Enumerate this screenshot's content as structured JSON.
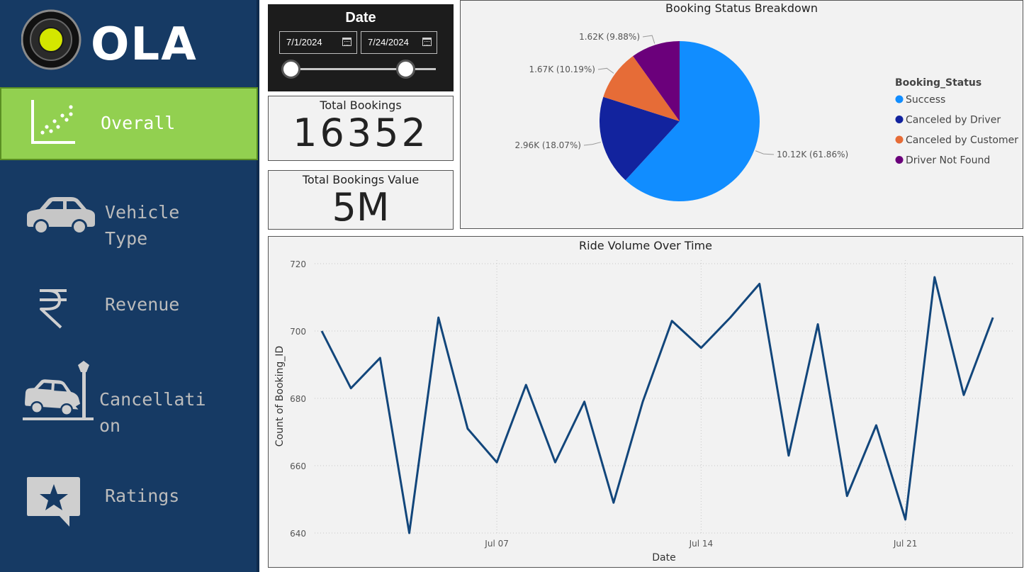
{
  "sidebar": {
    "logo_text": "OLA",
    "items": [
      {
        "label": "Overall",
        "icon": "scatter-chart-icon",
        "active": true
      },
      {
        "label_line1": "Vehicle",
        "label_line2": "Type",
        "icon": "car-icon"
      },
      {
        "label": "Revenue",
        "icon": "rupee-icon"
      },
      {
        "label_line1": "Cancellati",
        "label_line2": "on",
        "icon": "car-crash-icon"
      },
      {
        "label": "Ratings",
        "icon": "star-chat-icon"
      }
    ],
    "colors": {
      "background": "#163A64",
      "active": "#92D050"
    }
  },
  "date_slicer": {
    "title": "Date",
    "start": "7/1/2024",
    "end": "7/24/2024"
  },
  "kpis": {
    "total_bookings_label": "Total Bookings",
    "total_bookings_value": "16352",
    "total_value_label": "Total Bookings Value",
    "total_value_value": "5M"
  },
  "pie": {
    "title": "Booking Status Breakdown",
    "legend_title": "Booking_Status",
    "slice_labels": [
      "10.12K (61.86%)",
      "2.96K (18.07%)",
      "1.67K (10.19%)",
      "1.62K (9.88%)"
    ]
  },
  "line": {
    "title": "Ride Volume Over Time",
    "xlabel": "Date",
    "ylabel": "Count of Booking_ID"
  },
  "chart_data": [
    {
      "type": "pie",
      "title": "Booking Status Breakdown",
      "legend_title": "Booking_Status",
      "labels": [
        "Success",
        "Canceled by Driver",
        "Canceled by Customer",
        "Driver Not Found"
      ],
      "values": [
        10120,
        2960,
        1670,
        1620
      ],
      "percentages": [
        61.86,
        18.07,
        10.19,
        9.88
      ],
      "colors": [
        "#118DFF",
        "#12239E",
        "#E66C37",
        "#6B007B"
      ],
      "legend_position": "right"
    },
    {
      "type": "line",
      "title": "Ride Volume Over Time",
      "xlabel": "Date",
      "ylabel": "Count of Booking_ID",
      "x": [
        "2024-07-01",
        "2024-07-02",
        "2024-07-03",
        "2024-07-04",
        "2024-07-05",
        "2024-07-06",
        "2024-07-07",
        "2024-07-08",
        "2024-07-09",
        "2024-07-10",
        "2024-07-11",
        "2024-07-12",
        "2024-07-13",
        "2024-07-14",
        "2024-07-15",
        "2024-07-16",
        "2024-07-17",
        "2024-07-18",
        "2024-07-19",
        "2024-07-20",
        "2024-07-21",
        "2024-07-22",
        "2024-07-23",
        "2024-07-24"
      ],
      "series": [
        {
          "values": [
            700,
            683,
            692,
            640,
            704,
            671,
            661,
            684,
            661,
            679,
            649,
            679,
            703,
            695,
            704,
            714,
            663,
            702,
            651,
            672,
            644,
            716,
            681,
            704
          ],
          "color": "#12467B"
        }
      ],
      "xticks": [
        "Jul 07",
        "Jul 14",
        "Jul 21"
      ],
      "yticks": [
        640,
        660,
        680,
        700,
        720
      ],
      "ylim": [
        640,
        720
      ],
      "grid": true
    }
  ]
}
